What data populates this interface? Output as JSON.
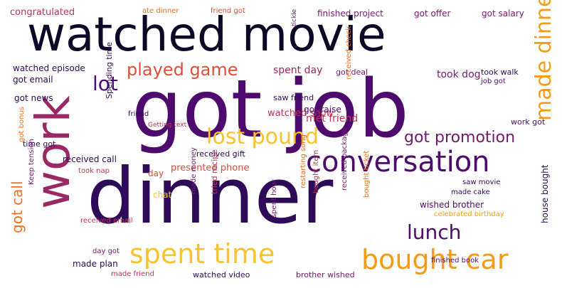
{
  "colors": {
    "background": "#ffffff",
    "palette": [
      "#0c0826",
      "#2d0b59",
      "#4e0b6e",
      "#741a6e",
      "#9a2865",
      "#bc3754",
      "#dc5039",
      "#f1711f",
      "#f89a12",
      "#f8c32d",
      "#fbe46a"
    ]
  },
  "words": [
    {
      "text": "dinner"
    },
    {
      "text": "got job"
    },
    {
      "text": "watched movie"
    },
    {
      "text": "work"
    },
    {
      "text": "conversation"
    },
    {
      "text": "spent time"
    },
    {
      "text": "bought car"
    },
    {
      "text": "lost pound"
    },
    {
      "text": "made dinner"
    },
    {
      "text": "played game"
    },
    {
      "text": "got promotion"
    },
    {
      "text": "lunch"
    },
    {
      "text": "lot"
    },
    {
      "text": "got call"
    },
    {
      "text": "congratulated"
    },
    {
      "text": "ate dinner"
    },
    {
      "text": "friend got"
    },
    {
      "text": "finished project"
    },
    {
      "text": "got offer"
    },
    {
      "text": "got salary"
    },
    {
      "text": "watched episode"
    },
    {
      "text": "spent day"
    },
    {
      "text": "took dog"
    },
    {
      "text": "took walk"
    },
    {
      "text": "got email"
    },
    {
      "text": "got deal"
    },
    {
      "text": "got news"
    },
    {
      "text": "saw friend"
    },
    {
      "text": "watched show"
    },
    {
      "text": "got raise"
    },
    {
      "text": "met friend"
    },
    {
      "text": "work got"
    },
    {
      "text": "time got"
    },
    {
      "text": "received call"
    },
    {
      "text": "received gift"
    },
    {
      "text": "got bonus"
    },
    {
      "text": "took nap"
    },
    {
      "text": "presented phone"
    },
    {
      "text": "day"
    },
    {
      "text": "chat"
    },
    {
      "text": "received email"
    },
    {
      "text": "made money"
    },
    {
      "text": "tried recipe"
    },
    {
      "text": "spent hour"
    },
    {
      "text": "restarting song"
    },
    {
      "text": "bought item"
    },
    {
      "text": "received package"
    },
    {
      "text": "bought ticket"
    },
    {
      "text": "wished brother"
    },
    {
      "text": "celebrated birthday"
    },
    {
      "text": "saw movie"
    },
    {
      "text": "made cake"
    },
    {
      "text": "day got"
    },
    {
      "text": "made plan"
    },
    {
      "text": "finished book"
    },
    {
      "text": "made friend"
    },
    {
      "text": "watched video"
    },
    {
      "text": "brother wished"
    },
    {
      "text": "house bought"
    },
    {
      "text": "friend"
    },
    {
      "text": "Spending time"
    },
    {
      "text": "Keep tension"
    },
    {
      "text": "received check"
    },
    {
      "text": "job got"
    },
    {
      "text": "tickle"
    },
    {
      "text": "Getting text"
    }
  ]
}
